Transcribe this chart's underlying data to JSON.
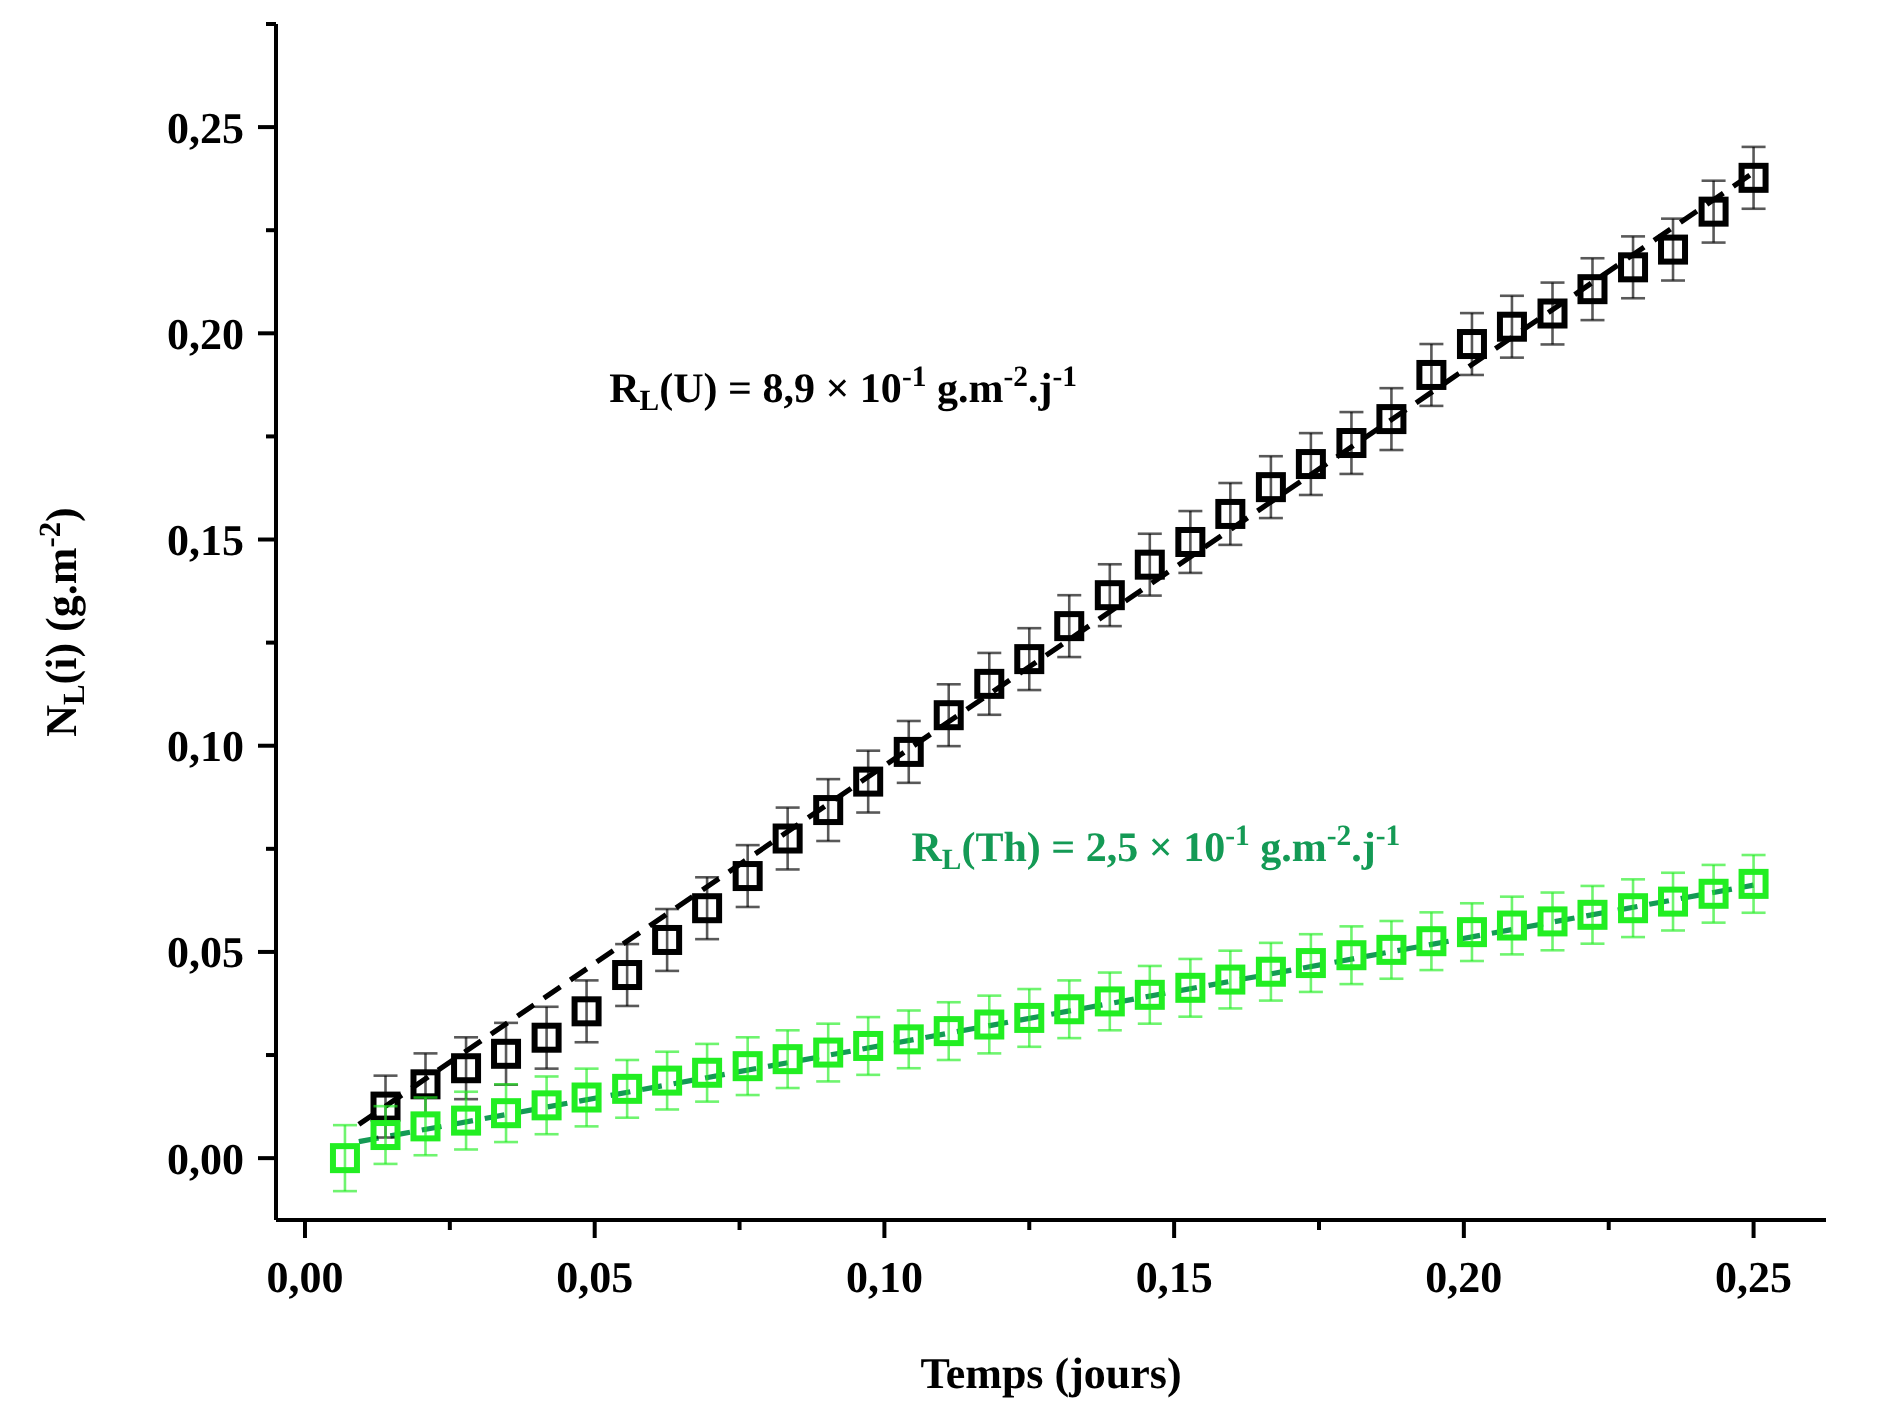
{
  "chart_data": {
    "type": "scatter",
    "xlabel": "Temps (jours)",
    "ylabel": "N$_{L}$(i) (g.m$^{-2}$)",
    "marker": "square",
    "xlim": [
      -0.005,
      0.2625
    ],
    "ylim": [
      -0.015,
      0.275
    ],
    "xticks": [
      {
        "value": 0,
        "label": "0,00"
      },
      {
        "value": 0.025,
        "label": null
      },
      {
        "value": 0.05,
        "label": "0,05"
      },
      {
        "value": 0.075,
        "label": null
      },
      {
        "value": 0.1,
        "label": "0,10"
      },
      {
        "value": 0.125,
        "label": null
      },
      {
        "value": 0.15,
        "label": "0,15"
      },
      {
        "value": 0.175,
        "label": null
      },
      {
        "value": 0.2,
        "label": "0,20"
      },
      {
        "value": 0.225,
        "label": null
      },
      {
        "value": 0.25,
        "label": "0,25"
      }
    ],
    "yticks": [
      {
        "value": 0,
        "label": "0,00"
      },
      {
        "value": 0.025,
        "label": null
      },
      {
        "value": 0.05,
        "label": "0,05"
      },
      {
        "value": 0.075,
        "label": null
      },
      {
        "value": 0.1,
        "label": "0,10"
      },
      {
        "value": 0.125,
        "label": null
      },
      {
        "value": 0.15,
        "label": "0,15"
      },
      {
        "value": 0.175,
        "label": null
      },
      {
        "value": 0.2,
        "label": "0,20"
      },
      {
        "value": 0.225,
        "label": null
      },
      {
        "value": 0.25,
        "label": "0,25"
      },
      {
        "value": 0.275,
        "label": null
      }
    ],
    "series": [
      {
        "color": "#000000",
        "x": [
          0.0139,
          0.0208,
          0.0278,
          0.0347,
          0.0417,
          0.0486,
          0.0556,
          0.0625,
          0.0694,
          0.0764,
          0.0833,
          0.0903,
          0.0972,
          0.1042,
          0.1111,
          0.1181,
          0.125,
          0.1319,
          0.1389,
          0.1458,
          0.1528,
          0.1597,
          0.1667,
          0.1736,
          0.1806,
          0.1875,
          0.1944,
          0.2014,
          0.2083,
          0.2153,
          0.2222,
          0.2292,
          0.2361,
          0.2431,
          0.25
        ],
        "values": [
          0.0125,
          0.0179,
          0.0218,
          0.0253,
          0.0292,
          0.0356,
          0.0444,
          0.0529,
          0.0606,
          0.0684,
          0.0775,
          0.0844,
          0.0913,
          0.0985,
          0.1074,
          0.115,
          0.121,
          0.129,
          0.1365,
          0.1439,
          0.1494,
          0.1562,
          0.1627,
          0.1683,
          0.1734,
          0.1792,
          0.1899,
          0.1974,
          0.2016,
          0.2048,
          0.2107,
          0.216,
          0.2203,
          0.2295,
          0.2377
        ],
        "errors": [
          0.0075,
          0.0075,
          0.0075,
          0.0075,
          0.0075,
          0.0075,
          0.0075,
          0.0075,
          0.0075,
          0.0075,
          0.0075,
          0.0075,
          0.0075,
          0.0075,
          0.0075,
          0.0075,
          0.0075,
          0.0075,
          0.0075,
          0.0075,
          0.0075,
          0.0075,
          0.0075,
          0.0075,
          0.0075,
          0.0075,
          0.0075,
          0.0075,
          0.0075,
          0.0075,
          0.0075,
          0.0075,
          0.0075,
          0.0075,
          0.0075
        ]
      },
      {
        "color": "#22ee22",
        "x": [
          0.0069,
          0.0139,
          0.0208,
          0.0278,
          0.0347,
          0.0417,
          0.0486,
          0.0556,
          0.0625,
          0.0694,
          0.0764,
          0.0833,
          0.0903,
          0.0972,
          0.1042,
          0.1111,
          0.1181,
          0.125,
          0.1319,
          0.1389,
          0.1458,
          0.1528,
          0.1597,
          0.1667,
          0.1736,
          0.1806,
          0.1875,
          0.1944,
          0.2014,
          0.2083,
          0.2153,
          0.2222,
          0.2292,
          0.2361,
          0.2431,
          0.25
        ],
        "values": [
          0.0,
          0.0056,
          0.0077,
          0.0091,
          0.0109,
          0.0128,
          0.0147,
          0.0168,
          0.0188,
          0.0207,
          0.0223,
          0.024,
          0.0256,
          0.0272,
          0.0288,
          0.0308,
          0.0324,
          0.034,
          0.0361,
          0.038,
          0.0396,
          0.0413,
          0.0433,
          0.0452,
          0.0473,
          0.0492,
          0.0505,
          0.0526,
          0.0548,
          0.0564,
          0.0574,
          0.059,
          0.0606,
          0.0622,
          0.0641,
          0.0665
        ],
        "errors": [
          0.008,
          0.007,
          0.007,
          0.007,
          0.007,
          0.007,
          0.007,
          0.007,
          0.007,
          0.007,
          0.007,
          0.007,
          0.007,
          0.007,
          0.007,
          0.007,
          0.007,
          0.007,
          0.007,
          0.007,
          0.007,
          0.007,
          0.007,
          0.007,
          0.007,
          0.007,
          0.007,
          0.007,
          0.007,
          0.007,
          0.007,
          0.007,
          0.007,
          0.007,
          0.007,
          0.007
        ]
      },
      {
        "type": "line",
        "name": "R$_{L}$(U) = 8,9 × 10$^{-1}$ g.m$^{-2}$.j$^{-1}$",
        "color": "#000000",
        "line_style": "dashed",
        "marker": "none",
        "x": [
          0.0093,
          0.25
        ],
        "values": [
          0.0082,
          0.239
        ]
      },
      {
        "type": "line",
        "name": "R$_{L}$(Th) = 2,5 × 10$^{-1}$ g.m$^{-2}$.j$^{-1}$",
        "color": "#149a55",
        "line_style": "dashed",
        "marker": "none",
        "x": [
          0.0093,
          0.25
        ],
        "values": [
          0.004,
          0.0662
        ]
      }
    ]
  }
}
